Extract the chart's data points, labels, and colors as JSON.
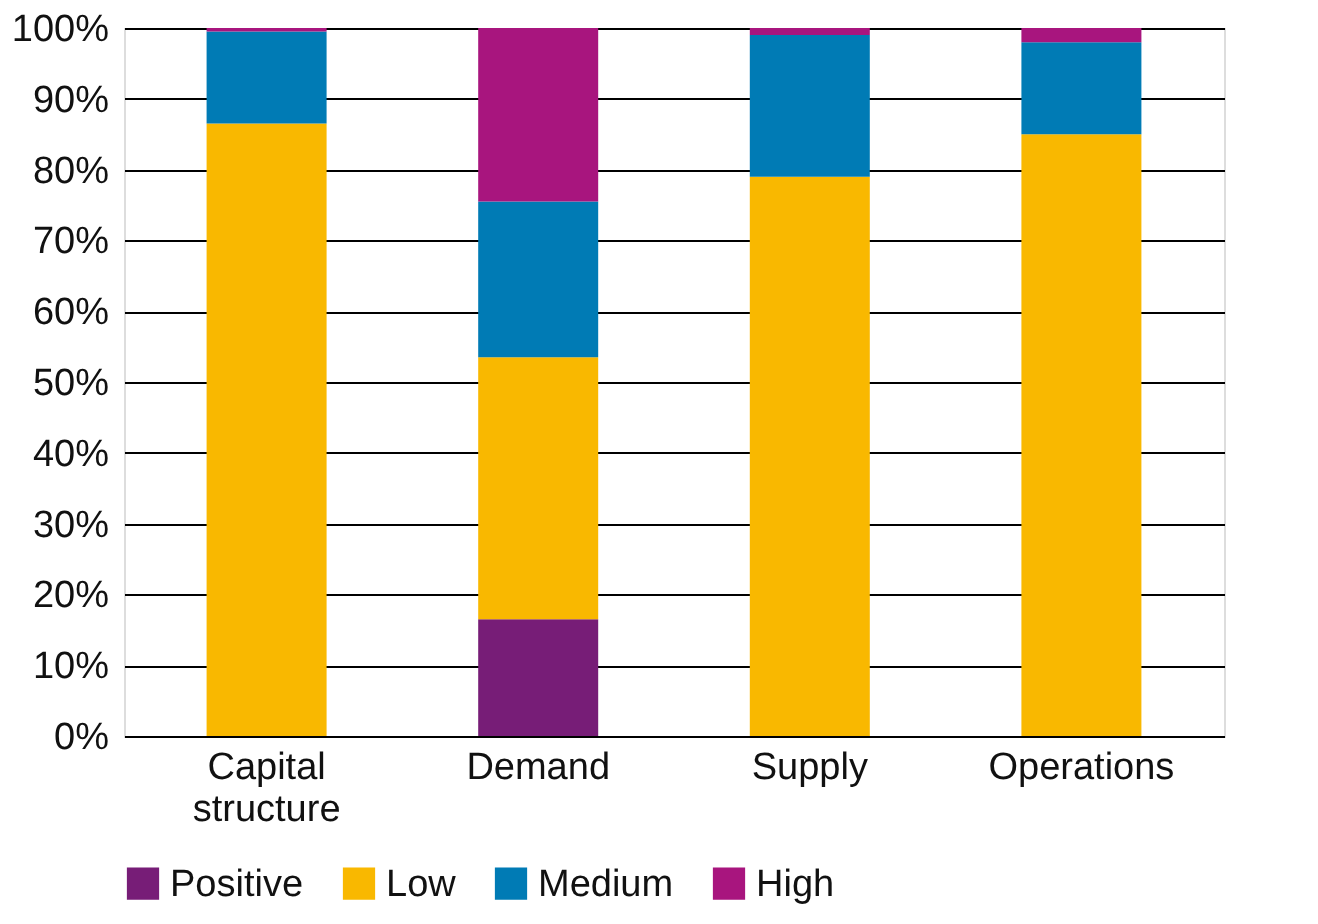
{
  "chart_data": {
    "type": "bar",
    "stacked": true,
    "categories": [
      "Capital structure",
      "Demand",
      "Supply",
      "Operations"
    ],
    "series": [
      {
        "name": "Positive",
        "color": "#771d77",
        "values": [
          null,
          16.5,
          null,
          null
        ]
      },
      {
        "name": "Low",
        "color": "#f9b800",
        "values": [
          86.5,
          37,
          79,
          85
        ]
      },
      {
        "name": "Medium",
        "color": "#007bb5",
        "values": [
          13,
          22,
          20,
          13
        ]
      },
      {
        "name": "High",
        "color": "#a8157e",
        "values": [
          0.5,
          24.5,
          1,
          2
        ]
      }
    ],
    "ylim": [
      0,
      100
    ],
    "yticks": [
      {
        "value": 0,
        "label": "0%"
      },
      {
        "value": 10,
        "label": "10%"
      },
      {
        "value": 20,
        "label": "20%"
      },
      {
        "value": 30,
        "label": "30%"
      },
      {
        "value": 40,
        "label": "40%"
      },
      {
        "value": 50,
        "label": "50%"
      },
      {
        "value": 60,
        "label": "60%"
      },
      {
        "value": 70,
        "label": "70%"
      },
      {
        "value": 80,
        "label": "80%"
      },
      {
        "value": 90,
        "label": "90%"
      },
      {
        "value": 100,
        "label": "100%"
      }
    ],
    "grid": "y",
    "legend": "bottom"
  }
}
